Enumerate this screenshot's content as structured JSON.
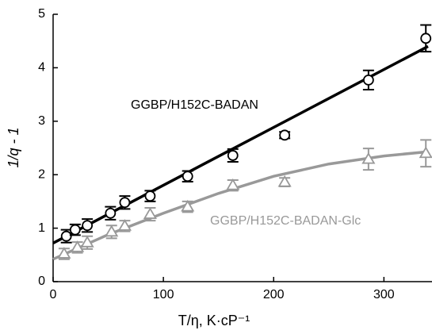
{
  "chart_data": {
    "type": "scatter",
    "x_label": "T/η, K·cP⁻¹",
    "y_label": "1/q - 1",
    "xlim": [
      0,
      340
    ],
    "ylim": [
      0,
      5
    ],
    "xticks": [
      0,
      100,
      200,
      300
    ],
    "yticks": [
      0,
      1,
      2,
      3,
      4,
      5
    ],
    "series": [
      {
        "name": "GGBP/H152C-BADAN",
        "color": "#000000",
        "marker": "circle",
        "x": [
          12,
          20,
          31,
          52,
          65,
          88,
          122,
          163,
          210,
          286,
          338
        ],
        "values": [
          0.85,
          0.97,
          1.05,
          1.28,
          1.48,
          1.6,
          1.97,
          2.36,
          2.74,
          3.77,
          4.55
        ],
        "errors": [
          0.12,
          0.1,
          0.12,
          0.12,
          0.12,
          0.1,
          0.1,
          0.12,
          0.06,
          0.18,
          0.25
        ],
        "fit": {
          "x": [
            0,
            340
          ],
          "values": [
            0.72,
            4.4
          ]
        }
      },
      {
        "name": "GGBP/H152C-BADAN-Glc",
        "color": "#999999",
        "marker": "triangle",
        "x": [
          10,
          22,
          31,
          53,
          65,
          88,
          122,
          163,
          210,
          286,
          338
        ],
        "values": [
          0.52,
          0.64,
          0.73,
          0.93,
          1.04,
          1.26,
          1.4,
          1.8,
          1.86,
          2.29,
          2.4
        ],
        "errors": [
          0.1,
          0.1,
          0.12,
          0.12,
          0.1,
          0.12,
          0.1,
          0.1,
          0.08,
          0.2,
          0.25
        ],
        "fit": {
          "x": [
            0,
            50,
            100,
            150,
            200,
            250,
            300,
            340
          ],
          "values": [
            0.42,
            0.88,
            1.28,
            1.65,
            1.97,
            2.2,
            2.35,
            2.43
          ]
        }
      }
    ]
  }
}
